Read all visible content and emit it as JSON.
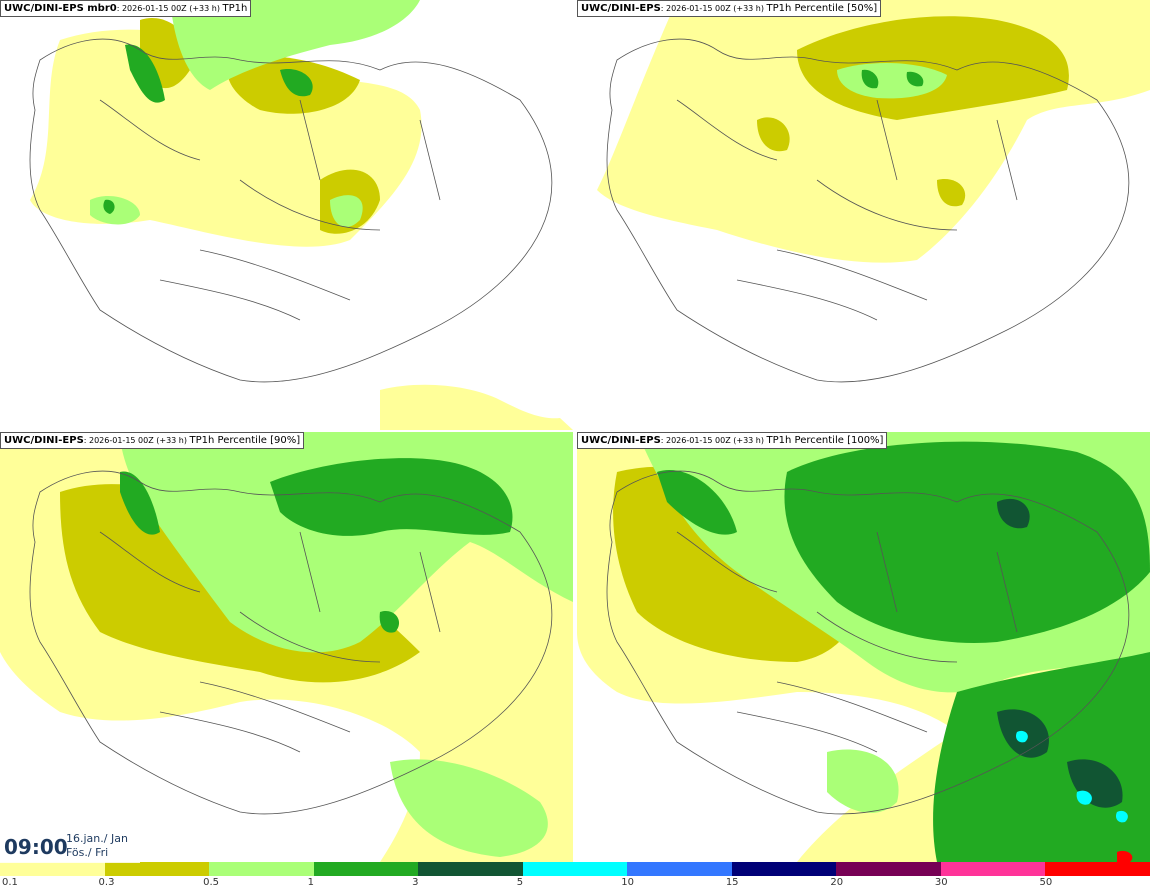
{
  "panels": [
    {
      "model": "UWC/DINI-EPS mbr0",
      "info": ": 2026-01-15 00Z (+33 h) ",
      "field": "TP1h"
    },
    {
      "model": "UWC/DINI-EPS",
      "info": ": 2026-01-15 00Z (+33 h) ",
      "field": "TP1h Percentile [50%]"
    },
    {
      "model": "UWC/DINI-EPS",
      "info": ": 2026-01-15 00Z (+33 h) ",
      "field": "TP1h Percentile [90%]"
    },
    {
      "model": "UWC/DINI-EPS",
      "info": ": 2026-01-15 00Z (+33 h) ",
      "field": "TP1h Percentile [100%]"
    }
  ],
  "clock": {
    "time": "09:00",
    "date_line1": "16.jan./ Jan",
    "date_line2": "Fös./ Fri"
  },
  "legend": {
    "colors": [
      "#ffff99",
      "#cccc00",
      "#aaff77",
      "#22aa22",
      "#115533",
      "#00ffff",
      "#3377ff",
      "#000077",
      "#770055",
      "#ff3399",
      "#ff0000"
    ],
    "labels": [
      "0.1",
      "0.3",
      "0.5",
      "1",
      "3",
      "5",
      "10",
      "15",
      "20",
      "30",
      "50"
    ]
  }
}
